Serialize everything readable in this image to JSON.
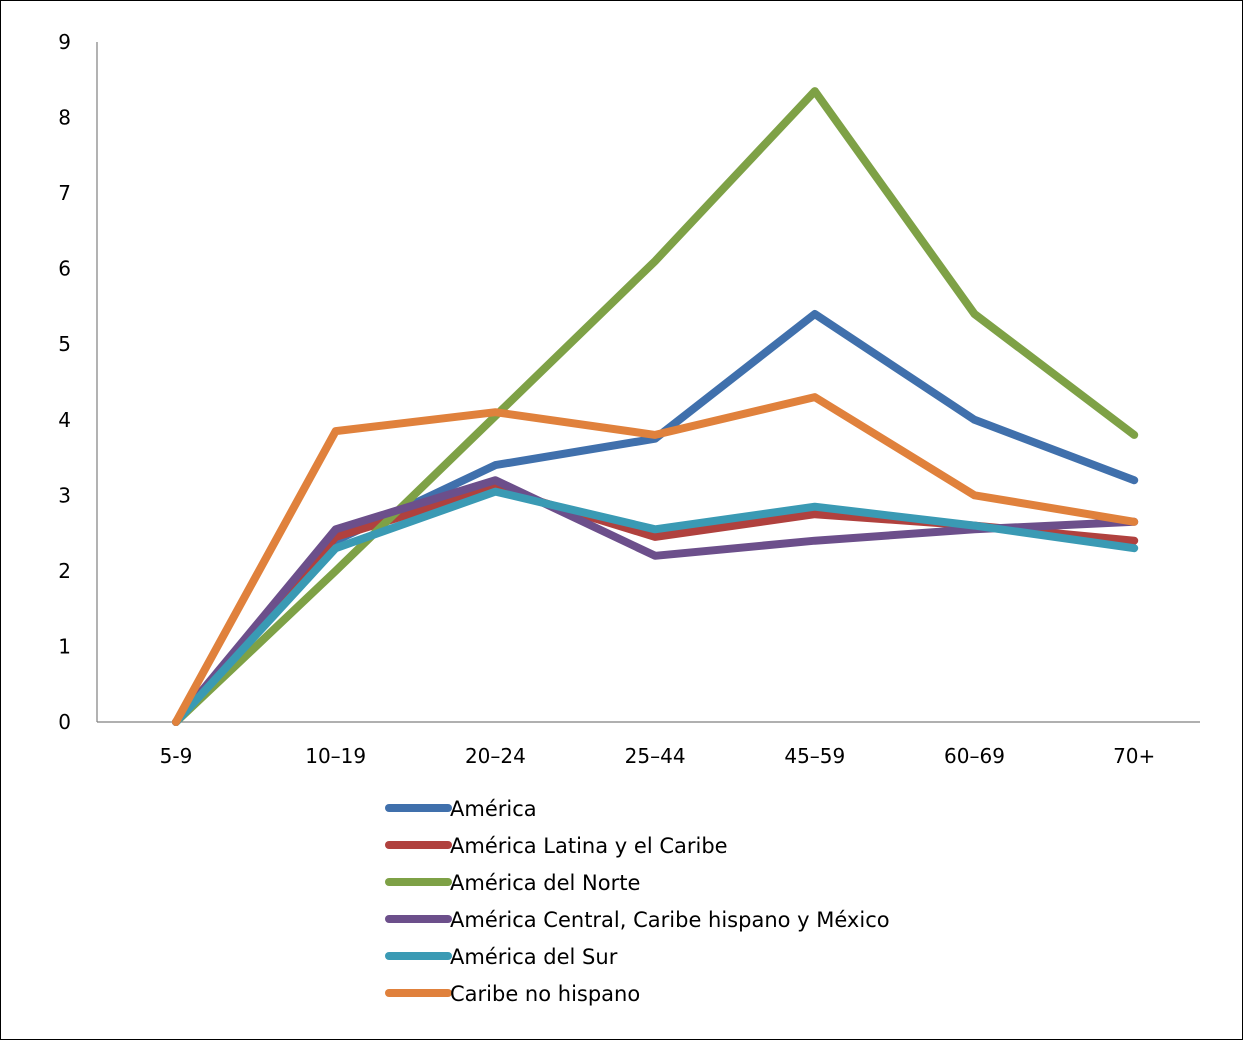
{
  "chart_data": {
    "type": "line",
    "title": "",
    "xlabel": "",
    "ylabel": "",
    "categories": [
      "5-9",
      "10–19",
      "20–24",
      "25–44",
      "45–59",
      "60–69",
      "70+"
    ],
    "ylim": [
      0,
      9
    ],
    "yticks": [
      0,
      1,
      2,
      3,
      4,
      5,
      6,
      7,
      8,
      9
    ],
    "grid": false,
    "legend_position": "bottom",
    "series": [
      {
        "name": "América",
        "color": "#4070ac",
        "values": [
          0,
          2.4,
          3.4,
          3.75,
          5.4,
          4.0,
          3.2
        ]
      },
      {
        "name": "América Latina y el Caribe",
        "color": "#b0413e",
        "values": [
          0,
          2.45,
          3.1,
          2.45,
          2.75,
          2.6,
          2.4
        ]
      },
      {
        "name": "América del Norte",
        "color": "#7ea146",
        "values": [
          0,
          2.0,
          4.05,
          6.1,
          8.35,
          5.4,
          3.8
        ]
      },
      {
        "name": "América Central, Caribe hispano y México",
        "color": "#6c4f8b",
        "values": [
          0,
          2.55,
          3.2,
          2.2,
          2.4,
          2.55,
          2.65
        ]
      },
      {
        "name": "América del Sur",
        "color": "#3a9ab4",
        "values": [
          0,
          2.3,
          3.05,
          2.55,
          2.85,
          2.6,
          2.3
        ]
      },
      {
        "name": "Caribe no hispano",
        "color": "#e0813c",
        "values": [
          0,
          3.85,
          4.1,
          3.8,
          4.3,
          3.0,
          2.65
        ]
      }
    ]
  }
}
